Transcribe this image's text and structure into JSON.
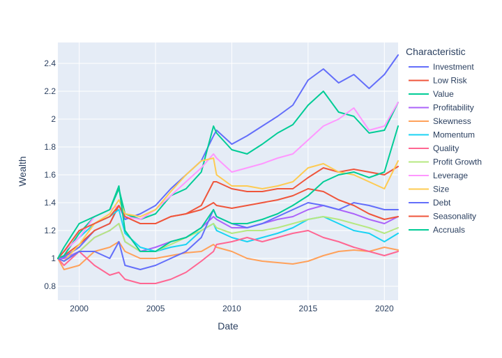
{
  "chart_data": {
    "type": "line",
    "xlabel": "Date",
    "ylabel": "Wealth",
    "xlim": [
      1998.6,
      2020.9
    ],
    "ylim": [
      0.7,
      2.55
    ],
    "x_ticks": [
      2000,
      2005,
      2010,
      2015,
      2020
    ],
    "y_ticks": [
      0.8,
      1,
      1.2,
      1.4,
      1.6,
      1.8,
      2,
      2.2,
      2.4
    ],
    "x_tick_labels": [
      "2000",
      "2005",
      "2010",
      "2015",
      "2020"
    ],
    "y_tick_labels": [
      "0.8",
      "1",
      "1.2",
      "1.4",
      "1.6",
      "1.8",
      "2",
      "2.2",
      "2.4"
    ],
    "grid": true,
    "legend_position": "right",
    "legend_title": "Characteristic",
    "x": [
      1998.6,
      1999.0,
      2000.0,
      2001.0,
      2002.0,
      2002.6,
      2003.0,
      2004.0,
      2005.0,
      2006.0,
      2007.0,
      2008.0,
      2008.8,
      2009.0,
      2010.0,
      2011.0,
      2012.0,
      2013.0,
      2014.0,
      2015.0,
      2016.0,
      2017.0,
      2018.0,
      2019.0,
      2020.0,
      2020.9
    ],
    "series": [
      {
        "name": "Investment",
        "color": "#636efa",
        "values": [
          1.0,
          1.01,
          1.08,
          1.2,
          1.25,
          1.38,
          1.28,
          1.32,
          1.38,
          1.5,
          1.6,
          1.7,
          1.88,
          1.92,
          1.82,
          1.88,
          1.95,
          2.02,
          2.1,
          2.28,
          2.36,
          2.26,
          2.32,
          2.22,
          2.32,
          2.46
        ]
      },
      {
        "name": "Low Risk",
        "color": "#ef553b",
        "values": [
          1.0,
          1.02,
          1.1,
          1.2,
          1.25,
          1.38,
          1.3,
          1.25,
          1.25,
          1.3,
          1.32,
          1.38,
          1.55,
          1.55,
          1.5,
          1.48,
          1.48,
          1.5,
          1.5,
          1.58,
          1.65,
          1.62,
          1.64,
          1.62,
          1.6,
          1.66
        ]
      },
      {
        "name": "Value",
        "color": "#00cc96",
        "values": [
          1.0,
          1.02,
          1.18,
          1.3,
          1.35,
          1.5,
          1.32,
          1.28,
          1.32,
          1.45,
          1.5,
          1.62,
          1.95,
          1.9,
          1.78,
          1.75,
          1.82,
          1.9,
          1.96,
          2.1,
          2.2,
          2.05,
          2.02,
          1.9,
          1.92,
          2.12
        ]
      },
      {
        "name": "Profitability",
        "color": "#ab63fa",
        "values": [
          1.0,
          1.0,
          1.05,
          1.15,
          1.2,
          1.25,
          1.12,
          1.05,
          1.08,
          1.12,
          1.15,
          1.22,
          1.3,
          1.28,
          1.22,
          1.22,
          1.25,
          1.28,
          1.3,
          1.35,
          1.38,
          1.35,
          1.32,
          1.28,
          1.25,
          1.3
        ]
      },
      {
        "name": "Skewness",
        "color": "#ffa15a",
        "values": [
          1.0,
          0.92,
          0.95,
          1.05,
          1.08,
          1.12,
          1.05,
          1.0,
          1.0,
          1.02,
          1.04,
          1.05,
          1.1,
          1.08,
          1.05,
          1.0,
          0.98,
          0.97,
          0.96,
          0.98,
          1.02,
          1.05,
          1.06,
          1.05,
          1.08,
          1.06
        ]
      },
      {
        "name": "Momentum",
        "color": "#19d3f3",
        "values": [
          1.0,
          1.05,
          1.15,
          1.25,
          1.3,
          1.35,
          1.18,
          1.08,
          1.05,
          1.08,
          1.1,
          1.2,
          1.25,
          1.2,
          1.15,
          1.12,
          1.15,
          1.18,
          1.22,
          1.28,
          1.3,
          1.25,
          1.2,
          1.18,
          1.12,
          1.18
        ]
      },
      {
        "name": "Quality",
        "color": "#ff6692",
        "values": [
          1.0,
          0.95,
          1.05,
          0.95,
          0.88,
          0.9,
          0.85,
          0.82,
          0.82,
          0.85,
          0.9,
          0.98,
          1.05,
          1.1,
          1.12,
          1.15,
          1.12,
          1.15,
          1.18,
          1.2,
          1.15,
          1.12,
          1.08,
          1.05,
          1.02,
          1.05
        ]
      },
      {
        "name": "Profit Growth",
        "color": "#b6e880",
        "values": [
          1.0,
          0.98,
          1.05,
          1.15,
          1.2,
          1.25,
          1.12,
          1.05,
          1.05,
          1.1,
          1.15,
          1.2,
          1.25,
          1.22,
          1.18,
          1.2,
          1.2,
          1.22,
          1.25,
          1.28,
          1.3,
          1.28,
          1.25,
          1.22,
          1.18,
          1.22
        ]
      },
      {
        "name": "Leverage",
        "color": "#ff97ff",
        "values": [
          1.0,
          1.05,
          1.15,
          1.3,
          1.35,
          1.38,
          1.3,
          1.28,
          1.35,
          1.45,
          1.55,
          1.65,
          1.75,
          1.72,
          1.62,
          1.65,
          1.68,
          1.72,
          1.75,
          1.85,
          1.95,
          2.0,
          2.08,
          1.92,
          1.95,
          2.12
        ]
      },
      {
        "name": "Size",
        "color": "#fecb52",
        "values": [
          1.0,
          0.98,
          1.1,
          1.25,
          1.32,
          1.42,
          1.32,
          1.3,
          1.35,
          1.48,
          1.6,
          1.7,
          1.72,
          1.6,
          1.52,
          1.52,
          1.5,
          1.52,
          1.55,
          1.65,
          1.68,
          1.62,
          1.6,
          1.55,
          1.5,
          1.7
        ]
      },
      {
        "name": "Debt",
        "color": "#636efa",
        "values": [
          1.0,
          0.98,
          1.05,
          1.05,
          1.0,
          1.12,
          0.95,
          0.92,
          0.95,
          1.0,
          1.05,
          1.15,
          1.35,
          1.3,
          1.25,
          1.22,
          1.25,
          1.3,
          1.35,
          1.4,
          1.38,
          1.35,
          1.4,
          1.38,
          1.35,
          1.35
        ]
      },
      {
        "name": "Seasonality",
        "color": "#ef553b",
        "values": [
          1.0,
          1.05,
          1.2,
          1.25,
          1.3,
          1.38,
          1.3,
          1.25,
          1.25,
          1.3,
          1.32,
          1.35,
          1.4,
          1.38,
          1.36,
          1.38,
          1.4,
          1.42,
          1.45,
          1.5,
          1.48,
          1.42,
          1.38,
          1.32,
          1.28,
          1.3
        ]
      },
      {
        "name": "Accruals",
        "color": "#00cc96",
        "values": [
          1.0,
          1.08,
          1.25,
          1.3,
          1.35,
          1.52,
          1.2,
          1.05,
          1.05,
          1.12,
          1.15,
          1.22,
          1.35,
          1.3,
          1.25,
          1.25,
          1.28,
          1.32,
          1.38,
          1.45,
          1.55,
          1.6,
          1.62,
          1.58,
          1.62,
          1.95
        ]
      }
    ]
  }
}
